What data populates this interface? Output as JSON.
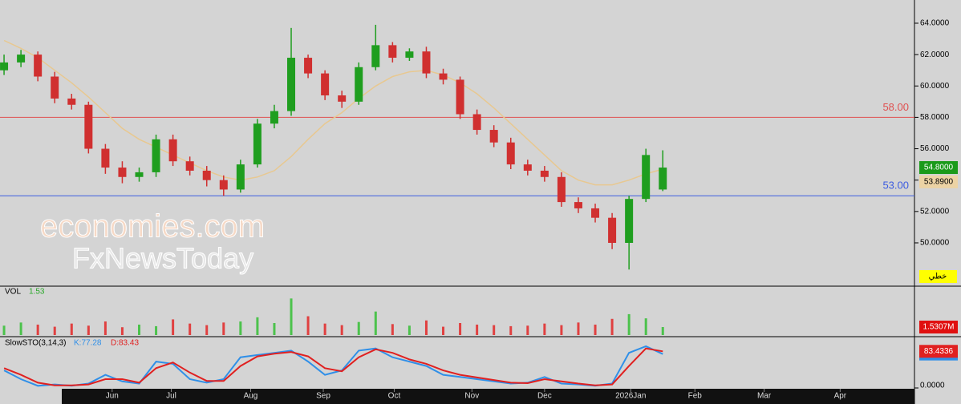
{
  "watermark": {
    "line1": "economies.com",
    "line2": "FxNewsToday"
  },
  "chart_data": [
    {
      "type": "candlestick",
      "up_color": "#1f9e1f",
      "down_color": "#d03030",
      "open": [
        61.0,
        61.5,
        62.0,
        60.6,
        59.2,
        58.8,
        56.0,
        54.8,
        54.2,
        54.5,
        56.6,
        55.2,
        54.6,
        54.0,
        53.4,
        55.0,
        57.6,
        58.4,
        61.8,
        60.8,
        59.4,
        59.0,
        61.2,
        62.6,
        61.8,
        62.2,
        60.8,
        60.4,
        58.2,
        57.2,
        56.4,
        55.0,
        54.6,
        54.2,
        52.6,
        52.2,
        51.6,
        50.0,
        52.8,
        53.4
      ],
      "high": [
        62.0,
        62.3,
        62.2,
        60.9,
        59.5,
        59.0,
        56.3,
        55.2,
        54.8,
        56.9,
        56.9,
        55.5,
        54.9,
        54.3,
        55.3,
        57.9,
        58.8,
        63.7,
        62.0,
        61.0,
        59.7,
        61.5,
        63.9,
        62.8,
        62.4,
        62.5,
        61.1,
        60.6,
        58.5,
        57.5,
        56.7,
        55.3,
        54.9,
        54.5,
        52.9,
        52.5,
        51.9,
        53.0,
        56.0,
        55.9
      ],
      "low": [
        60.7,
        61.2,
        60.3,
        58.9,
        58.5,
        55.7,
        54.4,
        53.8,
        53.9,
        54.2,
        54.9,
        54.3,
        53.6,
        53.0,
        53.2,
        54.8,
        57.3,
        58.1,
        60.5,
        59.1,
        58.6,
        58.8,
        61.0,
        61.5,
        61.6,
        60.5,
        60.1,
        57.9,
        56.9,
        56.1,
        54.7,
        54.3,
        53.9,
        52.3,
        51.9,
        51.3,
        49.6,
        48.3,
        52.6,
        53.3
      ],
      "close": [
        61.5,
        62.0,
        60.6,
        59.2,
        58.8,
        56.0,
        54.8,
        54.2,
        54.5,
        56.6,
        55.2,
        54.6,
        54.0,
        53.4,
        55.0,
        57.6,
        58.4,
        61.8,
        60.8,
        59.4,
        59.0,
        61.2,
        62.6,
        61.8,
        62.2,
        60.8,
        60.4,
        58.2,
        57.2,
        56.4,
        55.0,
        54.6,
        54.2,
        52.6,
        52.2,
        51.6,
        50.0,
        52.8,
        55.6,
        54.8
      ],
      "ma": {
        "color": "#e8c890",
        "values": [
          62.9,
          62.4,
          61.8,
          61.0,
          60.2,
          59.3,
          58.3,
          57.3,
          56.6,
          56.1,
          55.6,
          55.1,
          54.6,
          54.2,
          54.0,
          54.2,
          54.6,
          55.5,
          56.6,
          57.6,
          58.3,
          59.2,
          60.0,
          60.6,
          60.9,
          61.0,
          60.7,
          60.2,
          59.5,
          58.6,
          57.6,
          56.6,
          55.6,
          54.6,
          54.0,
          53.7,
          53.7,
          54.0,
          54.4,
          54.7
        ]
      },
      "ylim": [
        47.24,
        65.48
      ],
      "yticks": [
        {
          "value": 50,
          "label": "50.0000"
        },
        {
          "value": 52,
          "label": "52.0000"
        },
        {
          "value": 54,
          "label": "54.0000"
        },
        {
          "value": 56,
          "label": "56.0000"
        },
        {
          "value": 58,
          "label": "58.0000"
        },
        {
          "value": 60,
          "label": "60.0000"
        },
        {
          "value": 62,
          "label": "62.0000"
        },
        {
          "value": 64,
          "label": "64.0000"
        }
      ],
      "xlim": [
        -0.24,
        53.9
      ],
      "xticks": [
        {
          "value": 6.4,
          "label": "Jun"
        },
        {
          "value": 9.9,
          "label": "Jul"
        },
        {
          "value": 14.6,
          "label": "Aug"
        },
        {
          "value": 18.9,
          "label": "Sep"
        },
        {
          "value": 23.1,
          "label": "Oct"
        },
        {
          "value": 27.7,
          "label": "Nov"
        },
        {
          "value": 32.0,
          "label": "Dec"
        },
        {
          "value": 37.1,
          "label": "2026Jan"
        },
        {
          "value": 40.9,
          "label": "Feb"
        },
        {
          "value": 45.0,
          "label": "Mar"
        },
        {
          "value": 49.5,
          "label": "Apr"
        }
      ],
      "hlines": [
        {
          "value": 58,
          "label": "58.00",
          "color": "#e05050"
        },
        {
          "value": 53,
          "label": "53.00",
          "color": "#3c5ce0"
        }
      ],
      "price_labels": [
        {
          "value": 54.8,
          "label": "54.8000",
          "color": "#1a9a1a",
          "text_color": "#ffffff"
        },
        {
          "value": 53.89,
          "label": "53.8900",
          "color": "#ecd3a4",
          "text_color": "#000000"
        }
      ],
      "badge": "خطي"
    },
    {
      "type": "volume",
      "title": "VOL",
      "last_label": "1.53",
      "axis_label": "1.5307M",
      "axis_color": "#e01010",
      "up_color": "#4cc24c",
      "down_color": "#e04040",
      "ylim": [
        0,
        9.2
      ],
      "values": [
        1.8,
        2.4,
        2.0,
        1.6,
        2.2,
        1.8,
        2.6,
        1.5,
        2.0,
        1.7,
        3.0,
        2.2,
        1.9,
        2.4,
        2.6,
        3.4,
        2.3,
        7.0,
        3.6,
        2.2,
        1.9,
        2.5,
        4.5,
        2.1,
        1.8,
        2.8,
        1.6,
        2.3,
        2.0,
        1.9,
        1.7,
        1.8,
        2.2,
        1.9,
        2.4,
        2.0,
        3.1,
        4.0,
        3.2,
        1.5307
      ]
    },
    {
      "type": "stochastic",
      "title": "SlowSTO(3,14,3)",
      "ylim": [
        0,
        115
      ],
      "yticks": [
        {
          "value": 0,
          "label": "0.0000"
        }
      ],
      "series": [
        {
          "name": "K",
          "legend_label": "K:77.28",
          "axis_label": "77.2824",
          "color": "#2f8fe8",
          "values": [
            40,
            20,
            5,
            8,
            5,
            10,
            30,
            15,
            10,
            60,
            55,
            20,
            12,
            20,
            70,
            75,
            80,
            85,
            60,
            30,
            40,
            85,
            90,
            70,
            60,
            50,
            30,
            25,
            20,
            15,
            10,
            12,
            25,
            10,
            8,
            5,
            10,
            80,
            95,
            77.2824
          ]
        },
        {
          "name": "D",
          "legend_label": "D:83.43",
          "axis_label": "83.4336",
          "color": "#e02020",
          "values": [
            45,
            30,
            12,
            6,
            6,
            8,
            20,
            20,
            12,
            45,
            58,
            35,
            16,
            16,
            50,
            72,
            78,
            82,
            72,
            45,
            38,
            70,
            88,
            80,
            65,
            55,
            40,
            30,
            24,
            18,
            12,
            11,
            20,
            15,
            10,
            6,
            8,
            50,
            90,
            83.4336
          ]
        }
      ]
    }
  ]
}
